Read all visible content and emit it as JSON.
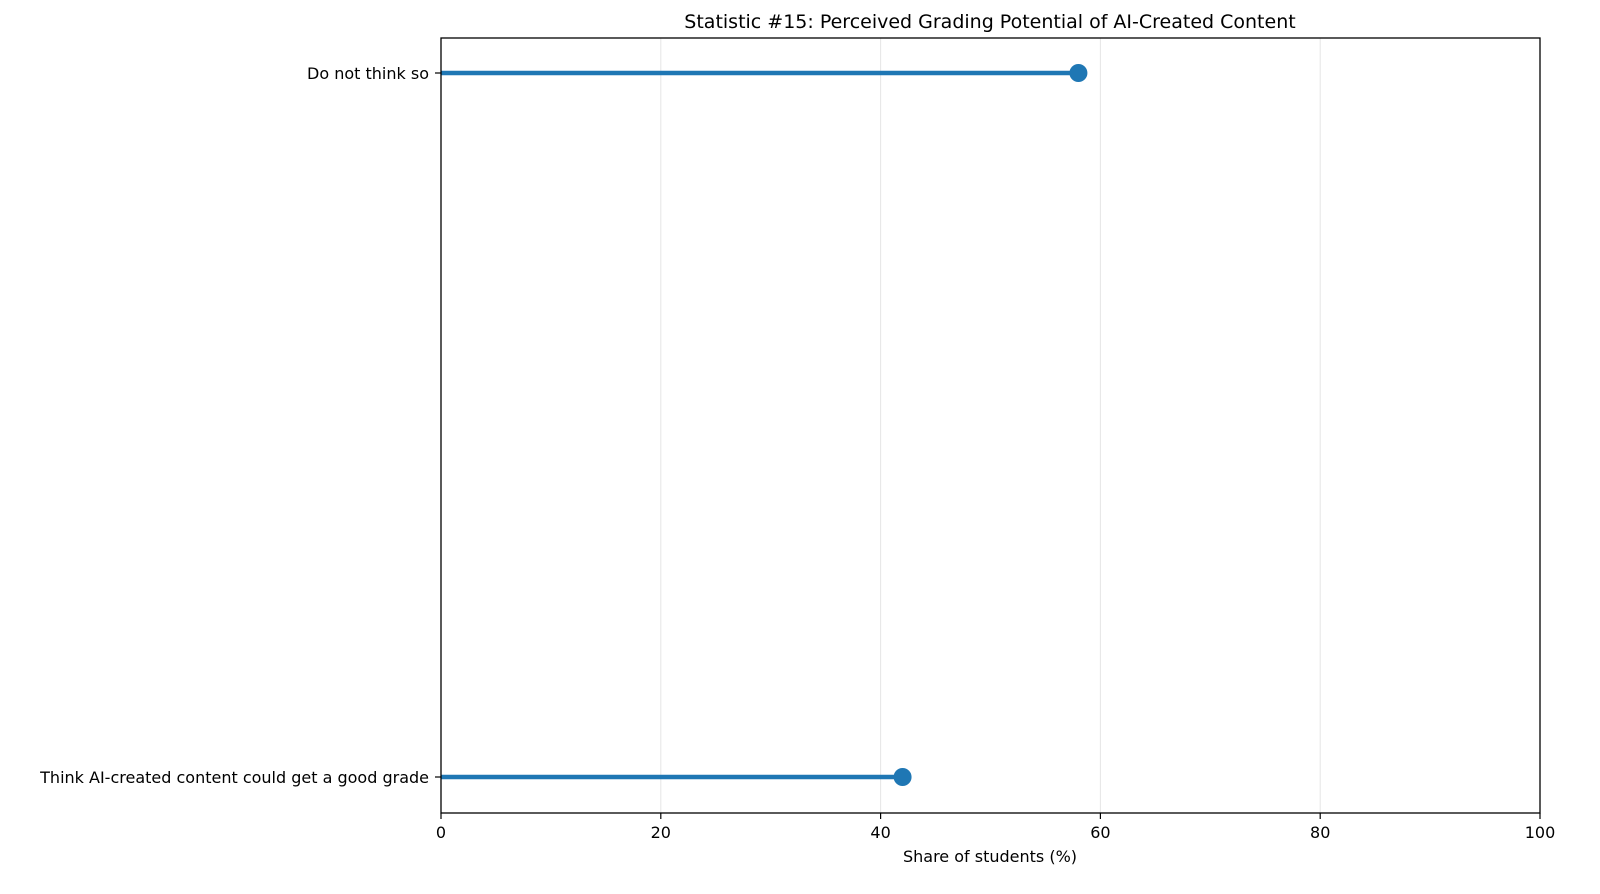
{
  "chart_data": {
    "type": "lollipop",
    "title": "Statistic #15: Perceived Grading Potential of AI-Created Content",
    "xlabel": "Share of students (%)",
    "ylabel": "",
    "xlim": [
      0,
      100
    ],
    "xticks": [
      0,
      20,
      40,
      60,
      80,
      100
    ],
    "grid": "vertical",
    "categories": [
      "Do not think so",
      "Think AI-created content could get a good grade"
    ],
    "values": [
      58,
      42
    ],
    "color": "#1f77b4"
  }
}
